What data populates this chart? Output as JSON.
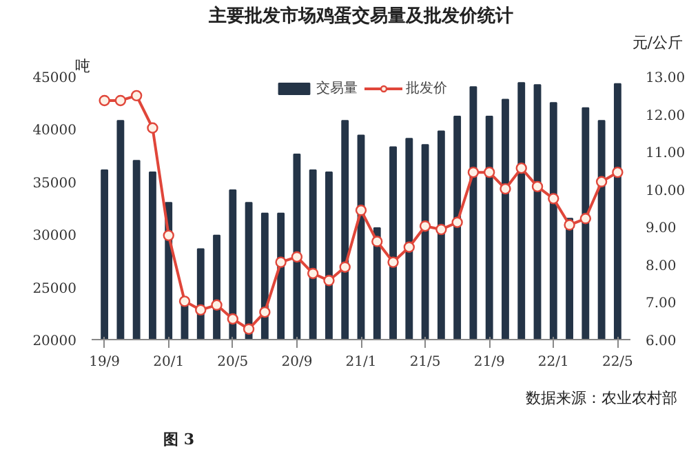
{
  "chart_data": {
    "type": "bar",
    "title": "主要批发市场鸡蛋交易量及批发价统计",
    "ylabel": "吨",
    "y2label": "元/公斤",
    "categories": [
      "19/9",
      null,
      null,
      null,
      "20/1",
      null,
      null,
      null,
      "20/5",
      null,
      null,
      null,
      "20/9",
      null,
      null,
      null,
      "21/1",
      null,
      null,
      null,
      "21/5",
      null,
      null,
      null,
      "21/9",
      null,
      null,
      null,
      "22/1",
      null,
      null,
      null,
      "22/5"
    ],
    "series": [
      {
        "name": "交易量",
        "color": "#243447",
        "values": [
          36100,
          40800,
          37000,
          35900,
          33000,
          23400,
          28600,
          29900,
          34200,
          33000,
          32000,
          32000,
          37600,
          36100,
          35900,
          40800,
          39400,
          30600,
          38300,
          39100,
          38500,
          39800,
          41200,
          44000,
          41200,
          42800,
          44400,
          44200,
          42500,
          31500,
          42000,
          40800,
          44300
        ]
      },
      {
        "name": "批发价",
        "type": "line",
        "axis": "y2",
        "color": "#e0463a",
        "marker": "circle",
        "values": [
          12.36,
          12.36,
          12.49,
          11.63,
          8.77,
          7.02,
          6.79,
          6.92,
          6.55,
          6.28,
          6.73,
          8.06,
          8.2,
          7.76,
          7.57,
          7.93,
          9.44,
          8.61,
          8.06,
          8.46,
          9.02,
          8.93,
          9.12,
          10.45,
          10.45,
          10.01,
          10.56,
          10.07,
          9.75,
          9.05,
          9.22,
          10.2,
          10.45
        ]
      }
    ],
    "ylim": [
      20000,
      45000
    ],
    "yticks": [
      20000,
      25000,
      30000,
      35000,
      40000,
      45000
    ],
    "y2lim": [
      6,
      13
    ],
    "y2ticks": [
      {
        "value": 6,
        "label": "6.00"
      },
      {
        "value": 7,
        "label": "7.00"
      },
      {
        "value": 8,
        "label": "8.00"
      },
      {
        "value": 9,
        "label": "9.00"
      },
      {
        "value": 10,
        "label": "10.00"
      },
      {
        "value": 11,
        "label": "11.00"
      },
      {
        "value": 12,
        "label": "12.00"
      },
      {
        "value": 13,
        "label": "13.00"
      }
    ],
    "grid": false,
    "legend": "top",
    "annotations": [
      "数据来源：农业农村部",
      "图 3"
    ]
  }
}
